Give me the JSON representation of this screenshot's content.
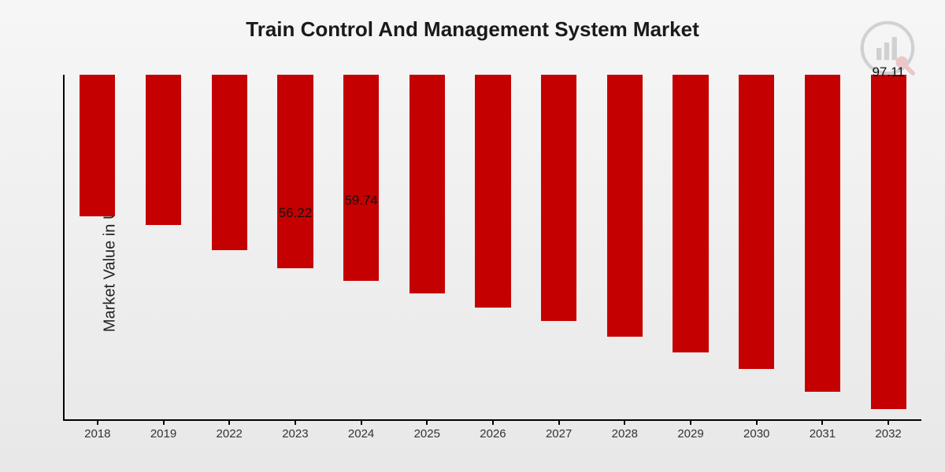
{
  "chart": {
    "type": "bar",
    "title": "Train Control And Management System Market",
    "title_fontsize": 26,
    "ylabel": "Market Value in USD Billion",
    "ylabel_fontsize": 20,
    "categories": [
      "2018",
      "2019",
      "2022",
      "2023",
      "2024",
      "2025",
      "2026",
      "2027",
      "2028",
      "2029",
      "2030",
      "2031",
      "2032"
    ],
    "values": [
      41,
      43.5,
      51,
      56.22,
      59.74,
      63.5,
      67.5,
      71.5,
      76,
      80.5,
      85.5,
      92,
      97.11
    ],
    "shown_value_labels": {
      "3": "56.22",
      "4": "59.74",
      "12": "97.11"
    },
    "ylim": [
      0,
      100
    ],
    "bar_color": "#c40001",
    "bar_width_ratio": 0.54,
    "axis_color": "#000000",
    "background_gradient_top": "#f6f6f6",
    "background_gradient_bottom": "#e8e8e8",
    "xtick_fontsize": 15,
    "value_label_fontsize": 17,
    "text_color": "#222222",
    "watermark_opacity": 0.18
  }
}
